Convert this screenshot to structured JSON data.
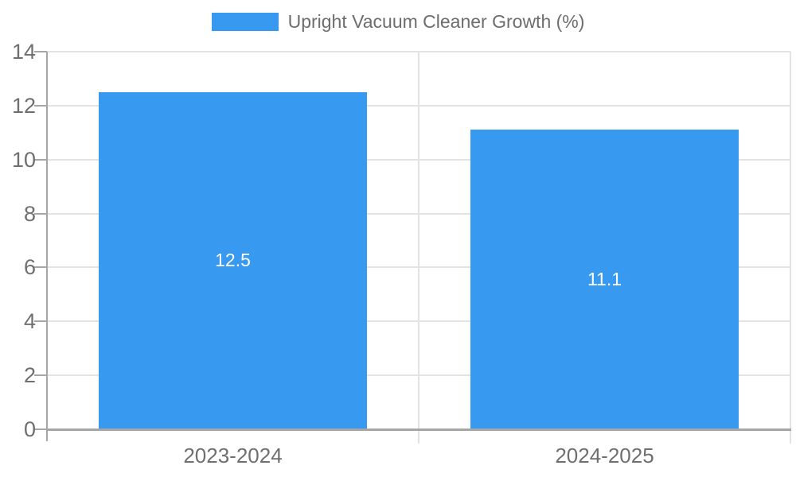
{
  "chart_data": {
    "type": "bar",
    "title": "",
    "legend": {
      "label": "Upright Vacuum Cleaner Growth (%)",
      "position": "top"
    },
    "categories": [
      "2023-2024",
      "2024-2025"
    ],
    "series": [
      {
        "name": "Upright Vacuum Cleaner Growth (%)",
        "values": [
          12.5,
          11.1
        ]
      }
    ],
    "bar_labels": [
      "12.5",
      "11.1"
    ],
    "xlabel": "",
    "ylabel": "",
    "ylim": [
      0,
      14
    ],
    "yticks": [
      0,
      2,
      4,
      6,
      8,
      10,
      12,
      14
    ],
    "grid": true,
    "colors": {
      "bar": "#3899f0",
      "bar_label": "#ffffff",
      "axis": "#a6a6a6",
      "grid": "#e3e3e3",
      "tick_label": "#6f6f6f",
      "legend_text": "#6d6d6d",
      "background": "#ffffff"
    }
  }
}
